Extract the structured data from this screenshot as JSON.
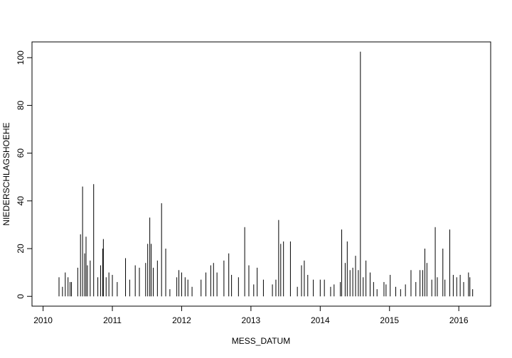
{
  "chart_data": {
    "type": "line",
    "x_label": "MESS_DATUM",
    "y_label": "NIEDERSCHLAGSHOEHE",
    "xlim": [
      2009.84,
      2016.46
    ],
    "xticks": [
      2010,
      2011,
      2012,
      2013,
      2014,
      2015,
      2016
    ],
    "ylim": [
      -4.1,
      106.6
    ],
    "yticks": [
      0,
      20,
      40,
      60,
      80,
      100
    ],
    "color": "#000000",
    "x": [
      2010.23,
      2010.28,
      2010.32,
      2010.36,
      2010.39,
      2010.41,
      2010.5,
      2010.54,
      2010.57,
      2010.6,
      2010.62,
      2010.64,
      2010.68,
      2010.73,
      2010.79,
      2010.83,
      2010.86,
      2010.87,
      2010.91,
      2010.95,
      2011.0,
      2011.07,
      2011.19,
      2011.25,
      2011.33,
      2011.39,
      2011.48,
      2011.51,
      2011.54,
      2011.56,
      2011.59,
      2011.65,
      2011.71,
      2011.77,
      2011.83,
      2011.93,
      2011.96,
      2012.0,
      2012.05,
      2012.09,
      2012.15,
      2012.28,
      2012.35,
      2012.42,
      2012.46,
      2012.51,
      2012.61,
      2012.68,
      2012.72,
      2012.82,
      2012.91,
      2012.97,
      2013.04,
      2013.09,
      2013.18,
      2013.31,
      2013.36,
      2013.4,
      2013.43,
      2013.47,
      2013.57,
      2013.67,
      2013.73,
      2013.77,
      2013.82,
      2013.9,
      2014.0,
      2014.06,
      2014.15,
      2014.2,
      2014.29,
      2014.31,
      2014.36,
      2014.39,
      2014.43,
      2014.47,
      2014.51,
      2014.55,
      2014.58,
      2014.62,
      2014.66,
      2014.72,
      2014.77,
      2014.82,
      2014.92,
      2014.95,
      2015.01,
      2015.09,
      2015.16,
      2015.23,
      2015.31,
      2015.38,
      2015.44,
      2015.48,
      2015.51,
      2015.54,
      2015.61,
      2015.66,
      2015.69,
      2015.77,
      2015.8,
      2015.87,
      2015.92,
      2015.97,
      2016.02,
      2016.07,
      2016.14,
      2016.16,
      2016.2
    ],
    "values": [
      8,
      4,
      10,
      8,
      6,
      6,
      12,
      26,
      46,
      18,
      25,
      13,
      15,
      47,
      8,
      13,
      20,
      24,
      8,
      10,
      9,
      6,
      16,
      7,
      13,
      12,
      14,
      22,
      33,
      22,
      12,
      15,
      39,
      20,
      3,
      8,
      11,
      10,
      8,
      7,
      4,
      7,
      10,
      13,
      14,
      10,
      15,
      18,
      9,
      8,
      29,
      13,
      5,
      12,
      7,
      5,
      7,
      32,
      22,
      23,
      23,
      4,
      13,
      15,
      9,
      7,
      7,
      7,
      4,
      5,
      6,
      28,
      14,
      23,
      11,
      12,
      17,
      11,
      102.5,
      8,
      15,
      10,
      6,
      3,
      6,
      5,
      9,
      4,
      3,
      5,
      11,
      6,
      11,
      11,
      20,
      14,
      7,
      29,
      8,
      20,
      7,
      28,
      9,
      8,
      9,
      6,
      10,
      8,
      3
    ]
  }
}
